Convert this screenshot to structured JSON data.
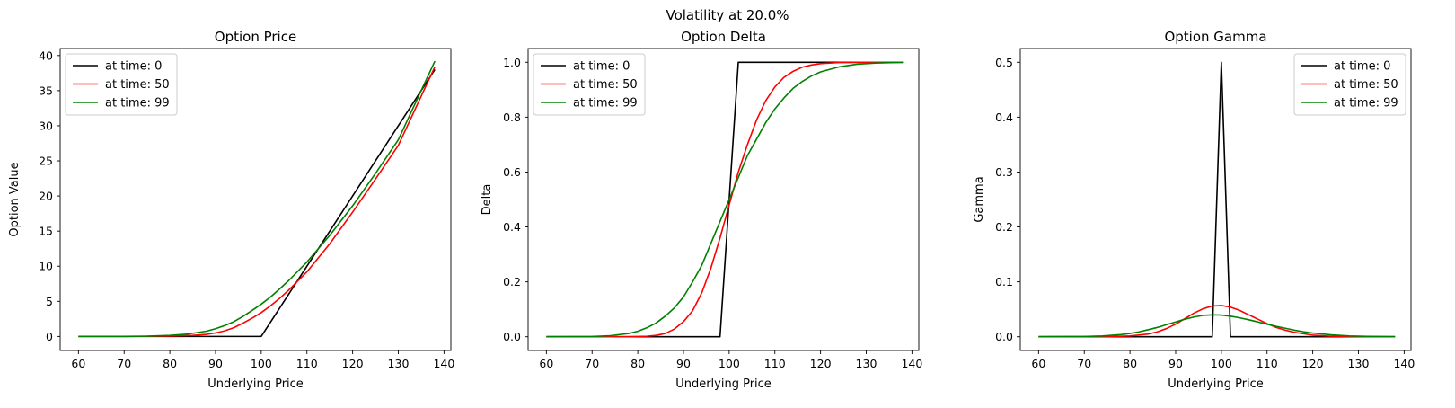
{
  "figure": {
    "suptitle": "Volatility at 20.0%"
  },
  "chart_data": [
    {
      "type": "line",
      "title": "Option Price",
      "xlabel": "Underlying Price",
      "ylabel": "Option Value",
      "xlim": [
        56,
        141.5
      ],
      "ylim": [
        -2,
        41
      ],
      "xticks": [
        60,
        70,
        80,
        90,
        100,
        110,
        120,
        130,
        140
      ],
      "yticks": [
        0,
        5,
        10,
        15,
        20,
        25,
        30,
        35,
        40
      ],
      "legend_position": "upper left",
      "grid": false,
      "series": [
        {
          "name": "at time: 0",
          "color": "#000000",
          "x": [
            60,
            70,
            80,
            90,
            98,
            100,
            102,
            110,
            120,
            130,
            138
          ],
          "y": [
            0,
            0,
            0,
            0,
            0,
            0,
            2,
            10,
            20,
            30,
            38
          ]
        },
        {
          "name": "at time: 50",
          "color": "#ff0000",
          "x": [
            60,
            70,
            80,
            85,
            88,
            90,
            92,
            94,
            96,
            98,
            100,
            102,
            104,
            106,
            110,
            115,
            120,
            125,
            130,
            138
          ],
          "y": [
            0,
            0,
            0.05,
            0.15,
            0.3,
            0.5,
            0.8,
            1.25,
            1.9,
            2.6,
            3.4,
            4.35,
            5.4,
            6.6,
            9.2,
            13.2,
            17.7,
            22.4,
            27.2,
            38.4
          ]
        },
        {
          "name": "at time: 99",
          "color": "#008000",
          "x": [
            60,
            70,
            75,
            80,
            84,
            88,
            90,
            92,
            94,
            96,
            98,
            100,
            102,
            104,
            106,
            110,
            115,
            120,
            125,
            130,
            138
          ],
          "y": [
            0,
            0.01,
            0.04,
            0.15,
            0.35,
            0.75,
            1.1,
            1.55,
            2.1,
            2.85,
            3.7,
            4.6,
            5.6,
            6.75,
            7.95,
            10.6,
            14.4,
            18.6,
            23.2,
            28.0,
            39.2
          ]
        }
      ]
    },
    {
      "type": "line",
      "title": "Option Delta",
      "xlabel": "Underlying Price",
      "ylabel": "Delta",
      "xlim": [
        56,
        141.5
      ],
      "ylim": [
        -0.05,
        1.05
      ],
      "xticks": [
        60,
        70,
        80,
        90,
        100,
        110,
        120,
        130,
        140
      ],
      "yticks": [
        0.0,
        0.2,
        0.4,
        0.6,
        0.8,
        1.0
      ],
      "ytick_labels": [
        "0.0",
        "0.2",
        "0.4",
        "0.6",
        "0.8",
        "1.0"
      ],
      "legend_position": "upper left",
      "grid": false,
      "series": [
        {
          "name": "at time: 0",
          "color": "#000000",
          "x": [
            60,
            98,
            102,
            138
          ],
          "y": [
            0,
            0,
            1,
            1
          ]
        },
        {
          "name": "at time: 50",
          "color": "#ff0000",
          "x": [
            60,
            78,
            82,
            84,
            86,
            88,
            90,
            92,
            94,
            96,
            98,
            100,
            102,
            104,
            106,
            108,
            110,
            112,
            114,
            116,
            118,
            120,
            124,
            130,
            138
          ],
          "y": [
            0,
            0,
            0.002,
            0.005,
            0.012,
            0.028,
            0.055,
            0.095,
            0.16,
            0.25,
            0.36,
            0.48,
            0.6,
            0.7,
            0.79,
            0.86,
            0.91,
            0.945,
            0.967,
            0.982,
            0.99,
            0.995,
            0.999,
            1.0,
            1.0
          ]
        },
        {
          "name": "at time: 99",
          "color": "#008000",
          "x": [
            60,
            70,
            74,
            78,
            80,
            82,
            84,
            86,
            88,
            90,
            92,
            94,
            96,
            98,
            100,
            102,
            104,
            106,
            108,
            110,
            112,
            114,
            116,
            118,
            120,
            124,
            128,
            132,
            138
          ],
          "y": [
            0,
            0.001,
            0.004,
            0.012,
            0.02,
            0.033,
            0.05,
            0.075,
            0.105,
            0.145,
            0.2,
            0.26,
            0.34,
            0.42,
            0.5,
            0.58,
            0.66,
            0.72,
            0.78,
            0.83,
            0.87,
            0.905,
            0.93,
            0.95,
            0.965,
            0.983,
            0.993,
            0.997,
            1.0
          ]
        }
      ]
    },
    {
      "type": "line",
      "title": "Option Gamma",
      "xlabel": "Underlying Price",
      "ylabel": "Gamma",
      "xlim": [
        56,
        141.5
      ],
      "ylim": [
        -0.025,
        0.525
      ],
      "xticks": [
        60,
        70,
        80,
        90,
        100,
        110,
        120,
        130,
        140
      ],
      "yticks": [
        0.0,
        0.1,
        0.2,
        0.3,
        0.4,
        0.5
      ],
      "ytick_labels": [
        "0.0",
        "0.1",
        "0.2",
        "0.3",
        "0.4",
        "0.5"
      ],
      "legend_position": "upper right",
      "grid": false,
      "series": [
        {
          "name": "at time: 0",
          "color": "#000000",
          "x": [
            60,
            98,
            100,
            102,
            138
          ],
          "y": [
            0,
            0,
            0.5,
            0,
            0
          ]
        },
        {
          "name": "at time: 50",
          "color": "#ff0000",
          "x": [
            60,
            76,
            80,
            84,
            86,
            88,
            90,
            92,
            94,
            96,
            98,
            100,
            102,
            104,
            106,
            108,
            110,
            112,
            114,
            116,
            120,
            124,
            130,
            138
          ],
          "y": [
            0,
            0.0005,
            0.0015,
            0.005,
            0.009,
            0.015,
            0.023,
            0.033,
            0.043,
            0.051,
            0.056,
            0.057,
            0.054,
            0.048,
            0.04,
            0.032,
            0.024,
            0.017,
            0.012,
            0.008,
            0.003,
            0.001,
            0.0002,
            0
          ]
        },
        {
          "name": "at time: 99",
          "color": "#008000",
          "x": [
            60,
            70,
            74,
            78,
            80,
            82,
            84,
            86,
            88,
            90,
            92,
            94,
            96,
            98,
            100,
            102,
            104,
            106,
            108,
            110,
            112,
            114,
            116,
            118,
            120,
            124,
            128,
            132,
            138
          ],
          "y": [
            0,
            0.0005,
            0.0015,
            0.004,
            0.006,
            0.009,
            0.013,
            0.017,
            0.022,
            0.027,
            0.032,
            0.036,
            0.039,
            0.04,
            0.0395,
            0.0375,
            0.0345,
            0.031,
            0.027,
            0.023,
            0.019,
            0.0155,
            0.012,
            0.0092,
            0.0068,
            0.0035,
            0.0016,
            0.0007,
            0.0001
          ]
        }
      ]
    }
  ]
}
